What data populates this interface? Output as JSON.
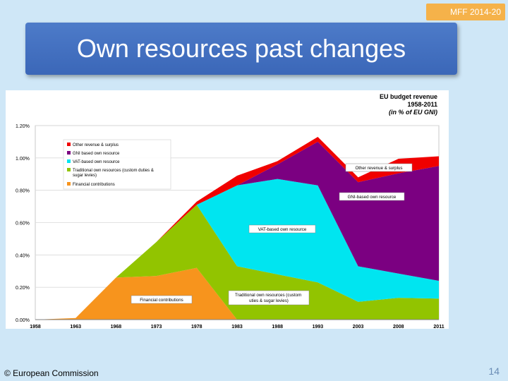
{
  "badge": "MFF 2014-20",
  "slide_title": "Own resources past changes",
  "chart_title": {
    "line1": "EU budget revenue",
    "line2": "1958-2011",
    "line3": "(in % of EU GNI)"
  },
  "footer": "© European Commission",
  "page_number": "14",
  "colors": {
    "financial": "#f7941d",
    "traditional": "#92c400",
    "vat": "#00e5f0",
    "gni": "#7b0081",
    "other": "#f00000"
  },
  "chart_data": {
    "type": "area",
    "stacked": true,
    "title": "EU budget revenue 1958-2011 (in % of EU GNI)",
    "xlabel": "",
    "ylabel": "",
    "ylim": [
      0,
      1.2
    ],
    "y_ticks": [
      "0.00%",
      "0.20%",
      "0.40%",
      "0.60%",
      "0.80%",
      "1.00%",
      "1.20%"
    ],
    "x": [
      "1958",
      "1963",
      "1968",
      "1973",
      "1978",
      "1983",
      "1988",
      "1993",
      "2003",
      "2008",
      "2011"
    ],
    "series": [
      {
        "name": "Financial contributions",
        "key": "financial",
        "values": [
          0.0,
          0.01,
          0.26,
          0.27,
          0.32,
          0.0,
          0.0,
          0.0,
          0.0,
          0.0,
          0.0
        ]
      },
      {
        "name": "Traditional own resources (custom duties & sugar levies)",
        "key": "traditional",
        "values": [
          0.0,
          0.0,
          0.0,
          0.21,
          0.39,
          0.33,
          0.28,
          0.23,
          0.11,
          0.135,
          0.13
        ]
      },
      {
        "name": "VAT-based own resource",
        "key": "vat",
        "values": [
          0.0,
          0.0,
          0.0,
          0.0,
          0.0,
          0.5,
          0.59,
          0.6,
          0.22,
          0.15,
          0.11
        ]
      },
      {
        "name": "GNI-based own resource",
        "key": "gni",
        "values": [
          0.0,
          0.0,
          0.0,
          0.0,
          0.0,
          0.0,
          0.09,
          0.27,
          0.52,
          0.62,
          0.71
        ]
      },
      {
        "name": "Other revenue & surplus",
        "key": "other",
        "values": [
          0.0,
          0.0,
          0.0,
          0.0,
          0.02,
          0.06,
          0.02,
          0.03,
          0.03,
          0.09,
          0.06
        ]
      }
    ],
    "legend": {
      "placement": "top-left",
      "items": [
        {
          "label": "Other revenue & surplus",
          "key": "other"
        },
        {
          "label": "GNI based own resource",
          "key": "gni"
        },
        {
          "label": "VAT-based own resource",
          "key": "vat"
        },
        {
          "label": "Traditional own resources (custom duties & sugar levies)",
          "key": "traditional"
        },
        {
          "label": "Financial contributions",
          "key": "financial"
        }
      ]
    },
    "annotations": [
      {
        "text": "Other revenue & surplus",
        "series": "other"
      },
      {
        "text": "GNI-based own resource",
        "series": "gni"
      },
      {
        "text": "VAT-based own resource",
        "series": "vat"
      },
      {
        "text": "Financial contributions",
        "series": "financial"
      },
      {
        "text": "Traditional own resources (custom duties & sugar levies)",
        "series": "traditional"
      }
    ]
  }
}
